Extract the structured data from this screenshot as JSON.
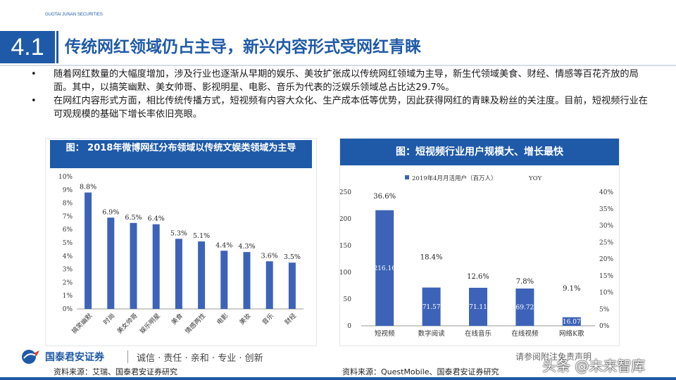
{
  "header": {
    "section_number": "4.1",
    "title": "传统网红领域仍占主导，新兴内容形式受网红青睐"
  },
  "bullets": [
    "随着网红数量的大幅度增加，涉及行业也逐渐从早期的娱乐、美妆扩张成以传统网红领域为主导，新生代领域美食、财经、情感等百花齐放的局面。其中，以搞笑幽默、美女帅哥、影视明星、电影、音乐为代表的泛娱乐领域总占比达29.7%。",
    "在网红内容形式方面，相比传统传播方式，短视频有内容大众化、生产成本低等优势，因此获得网红的青睐及粉丝的关注度。目前，短视频行业在可观规模的基础下增长率依旧亮眼。"
  ],
  "bullet_symbol": "•",
  "panels": {
    "left_title": "图： 2018年微博网红分布领域以传统文娱类领域为主导",
    "right_title": "图：短视频行业用户规模大、增长最快",
    "left_source": "资料来源：艾瑞、国泰君安证券研究",
    "right_source": "资料来源：QuestMobile、国泰君安证券研究"
  },
  "footer": {
    "logo_name": "国泰君安证券",
    "logo_en": "GUOTAI JUNAN SECURITIES",
    "motto": "诚信 · 责任 · 亲和 · 专业 · 创新",
    "disclaimer": "请参阅附注免责声明",
    "watermark": "头条 @未来智库"
  },
  "colors": {
    "brand": "#1f5aa8",
    "bar": "#3d63b8",
    "text": "#1a1a1a"
  },
  "chart_data": [
    {
      "type": "bar",
      "categories": [
        "搞笑幽默",
        "时尚",
        "美女帅哥",
        "娱乐明星",
        "美食",
        "情感两性",
        "电影",
        "美妆",
        "音乐",
        "财经"
      ],
      "values": [
        8.8,
        6.9,
        6.5,
        6.4,
        5.3,
        5.1,
        4.4,
        4.3,
        3.6,
        3.5
      ],
      "data_labels": [
        "8.8%",
        "6.9%",
        "6.5%",
        "6.4%",
        "5.3%",
        "5.1%",
        "4.4%",
        "4.3%",
        "3.6%",
        "3.5%"
      ],
      "ylim": [
        0,
        10
      ],
      "yticks": [
        "0%",
        "1%",
        "2%",
        "3%",
        "4%",
        "5%",
        "6%",
        "7%",
        "8%",
        "9%",
        "10%"
      ],
      "grid": false
    },
    {
      "type": "bar",
      "categories": [
        "短视频",
        "数字阅读",
        "在线音乐",
        "在线视频",
        "网络K歌"
      ],
      "series": [
        {
          "name": "2019年4月月活用户（百万人）",
          "values": [
            216.16,
            71.57,
            71.11,
            69.72,
            16.07
          ],
          "labels": [
            "216.16",
            "71.57",
            "71.11",
            "69.72",
            "16.07"
          ],
          "axis": "left"
        },
        {
          "name": "YOY",
          "values": [
            36.6,
            18.4,
            12.6,
            7.8,
            9.1
          ],
          "labels": [
            "36.6%",
            "18.4%",
            "12.6%",
            "7.8%",
            "9.1%"
          ],
          "axis": "right"
        }
      ],
      "ylim_left": [
        0,
        250
      ],
      "yticks_left": [
        "0",
        "50",
        "100",
        "150",
        "200",
        "250"
      ],
      "ylim_right": [
        0,
        40
      ],
      "yticks_right": [
        "0%",
        "5%",
        "10%",
        "15%",
        "20%",
        "25%",
        "30%",
        "35%",
        "40%"
      ],
      "legend_position": "top",
      "grid": false
    }
  ]
}
